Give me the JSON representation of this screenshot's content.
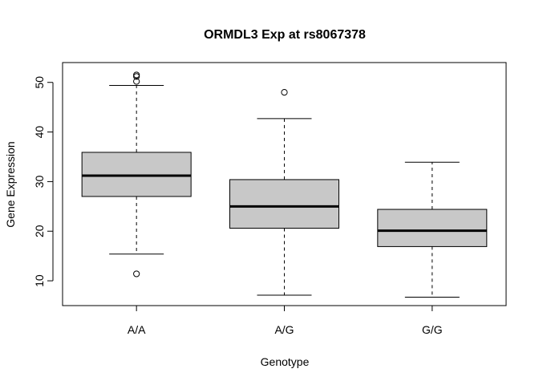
{
  "chart_data": {
    "type": "boxplot",
    "title": "ORMDL3 Exp at rs8067378",
    "xlabel": "Genotype",
    "ylabel": "Gene Expression",
    "ylim": [
      5,
      54
    ],
    "yticks": [
      10,
      20,
      30,
      40,
      50
    ],
    "grid": false,
    "legend": "none",
    "box_fill": "#c8c8c8",
    "stroke_color": "#000000",
    "categories": [
      "A/A",
      "A/G",
      "G/G"
    ],
    "boxes": [
      {
        "category": "A/A",
        "whisker_low": 15.4,
        "q1": 27.0,
        "median": 31.2,
        "q3": 35.9,
        "whisker_high": 49.4,
        "outliers": [
          11.4,
          50.2,
          51.2,
          51.5
        ]
      },
      {
        "category": "A/G",
        "whisker_low": 7.1,
        "q1": 20.6,
        "median": 25.0,
        "q3": 30.4,
        "whisker_high": 42.7,
        "outliers": [
          48.0
        ]
      },
      {
        "category": "G/G",
        "whisker_low": 6.7,
        "q1": 16.9,
        "median": 20.1,
        "q3": 24.4,
        "whisker_high": 33.9,
        "outliers": []
      }
    ]
  }
}
